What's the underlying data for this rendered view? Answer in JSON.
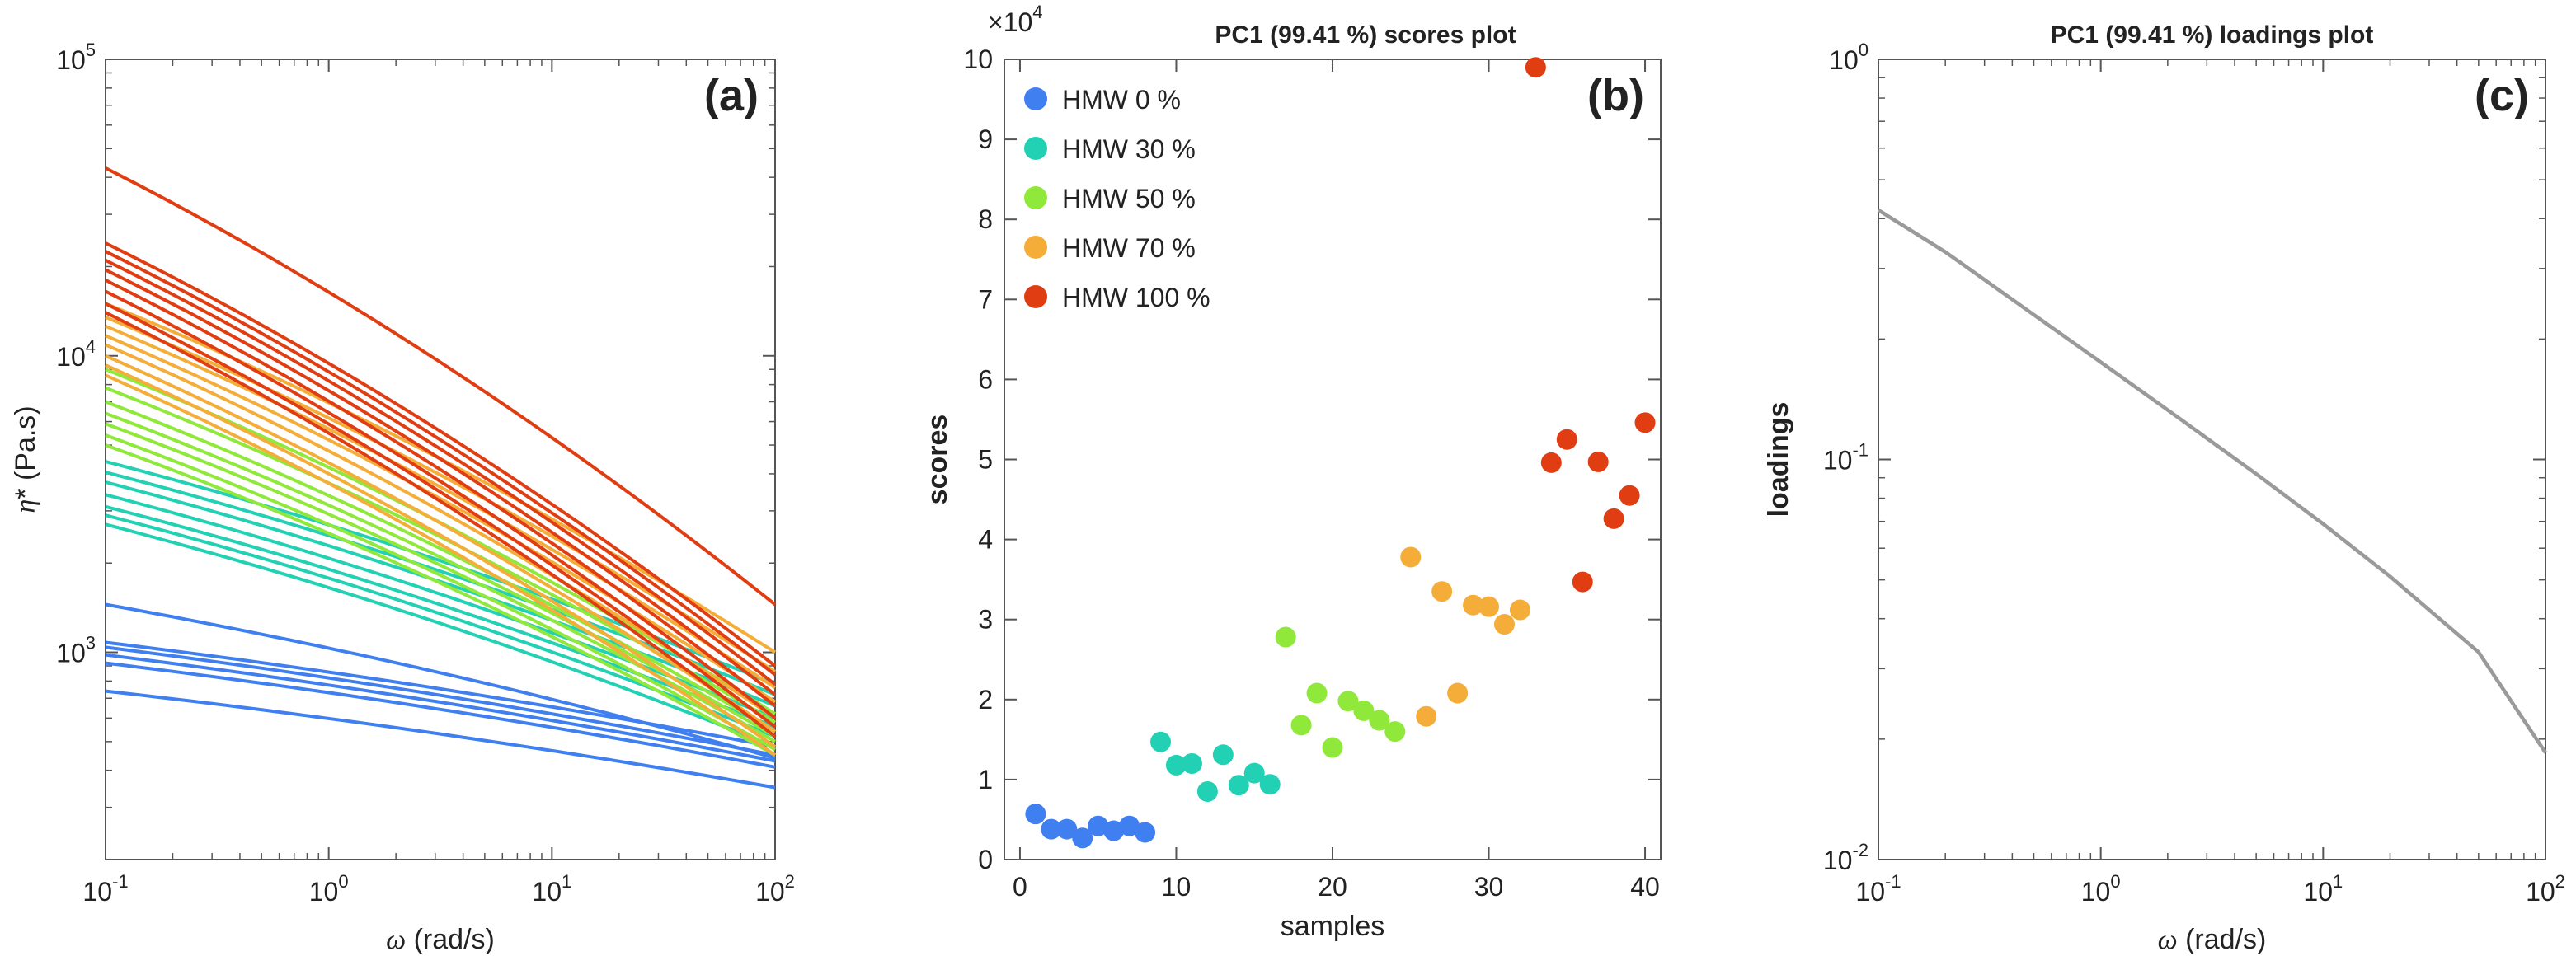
{
  "colors": {
    "HMW 0 %": "#3f7ff0",
    "HMW 30 %": "#22d1b4",
    "HMW 50 %": "#8fe83a",
    "HMW 70 %": "#f5ad3a",
    "HMW 100 %": "#e03d12",
    "loadings": "#9a9a9a"
  },
  "chart_data": [
    {
      "type": "line",
      "panel_label": "(a)",
      "title": "",
      "xlabel": "ω (rad/s)",
      "ylabel": "η* (Pa.s)",
      "xscale": "log",
      "yscale": "log",
      "xlim": [
        0.1,
        100
      ],
      "ylim": [
        200,
        100000
      ],
      "xticks": [
        0.1,
        1,
        10,
        100
      ],
      "xtick_labels": [
        {
          "base": "10",
          "exp": "-1"
        },
        {
          "base": "10",
          "exp": "0"
        },
        {
          "base": "10",
          "exp": "1"
        },
        {
          "base": "10",
          "exp": "2"
        }
      ],
      "yticks": [
        1000,
        10000,
        100000
      ],
      "ytick_labels": [
        {
          "base": "10",
          "exp": "3"
        },
        {
          "base": "10",
          "exp": "4"
        },
        {
          "base": "10",
          "exp": "5"
        }
      ],
      "grid": false,
      "series": [
        {
          "group": "HMW 0 %",
          "values": [
            [
              0.1,
              1450
            ],
            [
              100,
              440
            ]
          ]
        },
        {
          "group": "HMW 0 %",
          "values": [
            [
              0.1,
              1080
            ],
            [
              100,
              480
            ]
          ]
        },
        {
          "group": "HMW 0 %",
          "values": [
            [
              0.1,
              1040
            ],
            [
              100,
              450
            ]
          ]
        },
        {
          "group": "HMW 0 %",
          "values": [
            [
              0.1,
              980
            ],
            [
              100,
              430
            ]
          ]
        },
        {
          "group": "HMW 0 %",
          "values": [
            [
              0.1,
              920
            ],
            [
              100,
              410
            ]
          ]
        },
        {
          "group": "HMW 0 %",
          "values": [
            [
              0.1,
              740
            ],
            [
              100,
              350
            ]
          ]
        },
        {
          "group": "HMW 30 %",
          "values": [
            [
              0.1,
              4400
            ],
            [
              100,
              780
            ]
          ]
        },
        {
          "group": "HMW 30 %",
          "values": [
            [
              0.1,
              4050
            ],
            [
              100,
              720
            ]
          ]
        },
        {
          "group": "HMW 30 %",
          "values": [
            [
              0.1,
              3750
            ],
            [
              100,
              660
            ]
          ]
        },
        {
          "group": "HMW 30 %",
          "values": [
            [
              0.1,
              3400
            ],
            [
              100,
              600
            ]
          ]
        },
        {
          "group": "HMW 30 %",
          "values": [
            [
              0.1,
              3100
            ],
            [
              100,
              560
            ]
          ]
        },
        {
          "group": "HMW 30 %",
          "values": [
            [
              0.1,
              2900
            ],
            [
              100,
              520
            ]
          ]
        },
        {
          "group": "HMW 30 %",
          "values": [
            [
              0.1,
              2700
            ],
            [
              100,
              480
            ]
          ]
        },
        {
          "group": "HMW 50 %",
          "values": [
            [
              0.1,
              9000
            ],
            [
              100,
              620
            ]
          ]
        },
        {
          "group": "HMW 50 %",
          "values": [
            [
              0.1,
              7800
            ],
            [
              100,
              580
            ]
          ]
        },
        {
          "group": "HMW 50 %",
          "values": [
            [
              0.1,
              7000
            ],
            [
              100,
              540
            ]
          ]
        },
        {
          "group": "HMW 50 %",
          "values": [
            [
              0.1,
              6400
            ],
            [
              100,
              520
            ]
          ]
        },
        {
          "group": "HMW 50 %",
          "values": [
            [
              0.1,
              5900
            ],
            [
              100,
              500
            ]
          ]
        },
        {
          "group": "HMW 50 %",
          "values": [
            [
              0.1,
              5400
            ],
            [
              100,
              470
            ]
          ]
        },
        {
          "group": "HMW 50 %",
          "values": [
            [
              0.1,
              5000
            ],
            [
              100,
              450
            ]
          ]
        },
        {
          "group": "HMW 70 %",
          "values": [
            [
              0.1,
              15000
            ],
            [
              100,
              1000
            ]
          ]
        },
        {
          "group": "HMW 70 %",
          "values": [
            [
              0.1,
              13500
            ],
            [
              100,
              860
            ]
          ]
        },
        {
          "group": "HMW 70 %",
          "values": [
            [
              0.1,
              12600
            ],
            [
              100,
              760
            ]
          ]
        },
        {
          "group": "HMW 70 %",
          "values": [
            [
              0.1,
              11700
            ],
            [
              100,
              680
            ]
          ]
        },
        {
          "group": "HMW 70 %",
          "values": [
            [
              0.1,
              10900
            ],
            [
              100,
              600
            ]
          ]
        },
        {
          "group": "HMW 70 %",
          "values": [
            [
              0.1,
              10000
            ],
            [
              100,
              540
            ]
          ]
        },
        {
          "group": "HMW 70 %",
          "values": [
            [
              0.1,
              9300
            ],
            [
              100,
              480
            ]
          ]
        },
        {
          "group": "HMW 70 %",
          "values": [
            [
              0.1,
              8600
            ],
            [
              100,
              450
            ]
          ]
        },
        {
          "group": "HMW 100 %",
          "values": [
            [
              0.1,
              43000
            ],
            [
              100,
              1450
            ]
          ]
        },
        {
          "group": "HMW 100 %",
          "values": [
            [
              0.1,
              24000
            ],
            [
              100,
              900
            ]
          ]
        },
        {
          "group": "HMW 100 %",
          "values": [
            [
              0.1,
              22500
            ],
            [
              100,
              840
            ]
          ]
        },
        {
          "group": "HMW 100 %",
          "values": [
            [
              0.1,
              21000
            ],
            [
              100,
              780
            ]
          ]
        },
        {
          "group": "HMW 100 %",
          "values": [
            [
              0.1,
              19500
            ],
            [
              100,
              720
            ]
          ]
        },
        {
          "group": "HMW 100 %",
          "values": [
            [
              0.1,
              18000
            ],
            [
              100,
              660
            ]
          ]
        },
        {
          "group": "HMW 100 %",
          "values": [
            [
              0.1,
              16500
            ],
            [
              100,
              600
            ]
          ]
        },
        {
          "group": "HMW 100 %",
          "values": [
            [
              0.1,
              15000
            ],
            [
              100,
              560
            ]
          ]
        },
        {
          "group": "HMW 100 %",
          "values": [
            [
              0.1,
              14000
            ],
            [
              100,
              520
            ]
          ]
        }
      ]
    },
    {
      "type": "scatter",
      "panel_label": "(b)",
      "title": "PC1 (99.41 %) scores plot",
      "xlabel": "samples",
      "ylabel": "scores",
      "xlim": [
        -1,
        41
      ],
      "ylim": [
        0,
        10
      ],
      "y_multiplier": {
        "base": "×10",
        "exp": "4"
      },
      "xticks": [
        0,
        10,
        20,
        30,
        40
      ],
      "yticks": [
        0,
        1,
        2,
        3,
        4,
        5,
        6,
        7,
        8,
        9,
        10
      ],
      "grid": false,
      "legend_position": "top-left",
      "series": [
        {
          "name": "HMW 0 %",
          "x": [
            1,
            2,
            3,
            4,
            5,
            6,
            7,
            8
          ],
          "values": [
            0.57,
            0.38,
            0.38,
            0.27,
            0.42,
            0.36,
            0.42,
            0.34
          ]
        },
        {
          "name": "HMW 30 %",
          "x": [
            9,
            10,
            11,
            12,
            13,
            14,
            15,
            16
          ],
          "values": [
            1.47,
            1.18,
            1.2,
            0.85,
            1.31,
            0.93,
            1.08,
            0.94
          ]
        },
        {
          "name": "HMW 50 %",
          "x": [
            17,
            18,
            19,
            20,
            21,
            22,
            23,
            24
          ],
          "values": [
            2.78,
            1.68,
            2.08,
            1.4,
            1.98,
            1.86,
            1.74,
            1.6
          ]
        },
        {
          "name": "HMW 70 %",
          "x": [
            25,
            26,
            27,
            28,
            29,
            30,
            31,
            32
          ],
          "values": [
            3.78,
            1.79,
            3.35,
            2.08,
            3.18,
            3.16,
            2.94,
            3.12
          ]
        },
        {
          "name": "HMW 100 %",
          "x": [
            33,
            34,
            35,
            36,
            37,
            38,
            39,
            40
          ],
          "values": [
            9.9,
            4.96,
            5.25,
            3.47,
            4.97,
            4.26,
            4.55,
            5.46
          ]
        }
      ]
    },
    {
      "type": "line",
      "panel_label": "(c)",
      "title": "PC1 (99.41 %) loadings plot",
      "xlabel": "ω (rad/s)",
      "ylabel": "loadings",
      "xscale": "log",
      "yscale": "log",
      "xlim": [
        0.1,
        100
      ],
      "ylim": [
        0.01,
        1
      ],
      "xticks": [
        0.1,
        1,
        10,
        100
      ],
      "xtick_labels": [
        {
          "base": "10",
          "exp": "-1"
        },
        {
          "base": "10",
          "exp": "0"
        },
        {
          "base": "10",
          "exp": "1"
        },
        {
          "base": "10",
          "exp": "2"
        }
      ],
      "yticks": [
        0.01,
        0.1,
        1
      ],
      "ytick_labels": [
        {
          "base": "10",
          "exp": "-2"
        },
        {
          "base": "10",
          "exp": "-1"
        },
        {
          "base": "10",
          "exp": "0"
        }
      ],
      "grid": false,
      "series": [
        {
          "values": [
            [
              0.1,
              0.42
            ],
            [
              0.2,
              0.33
            ],
            [
              0.5,
              0.23
            ],
            [
              1,
              0.175
            ],
            [
              2,
              0.133
            ],
            [
              5,
              0.092
            ],
            [
              10,
              0.069
            ],
            [
              20,
              0.051
            ],
            [
              50,
              0.033
            ],
            [
              100,
              0.0185
            ]
          ]
        }
      ]
    }
  ]
}
